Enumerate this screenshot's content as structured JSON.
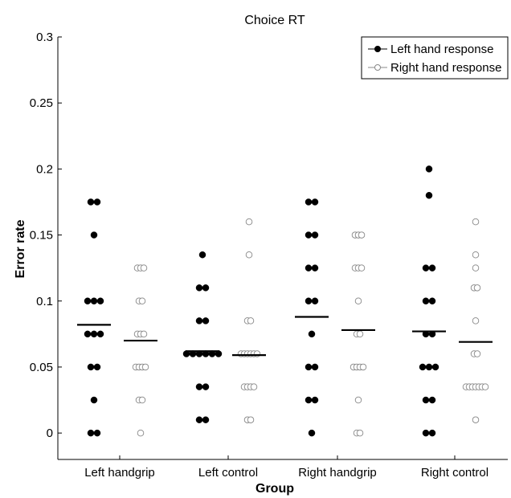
{
  "chart_data": {
    "type": "scatter",
    "title": "Choice RT",
    "xlabel": "Group",
    "ylabel": "Error rate",
    "ylim": [
      -0.02,
      0.3
    ],
    "yticks": [
      "0",
      "0.05",
      "0.1",
      "0.15",
      "0.2",
      "0.25",
      "0.3"
    ],
    "categories": [
      "Left handgrip",
      "Left control",
      "Right handgrip",
      "Right control"
    ],
    "legend_position": "top-right",
    "series": [
      {
        "name": "Left hand response",
        "marker": "filled-circle",
        "color": "#000000",
        "groups": [
          [
            0,
            0,
            0.025,
            0.05,
            0.05,
            0.075,
            0.075,
            0.075,
            0.1,
            0.1,
            0.1,
            0.15,
            0.175,
            0.175
          ],
          [
            0.01,
            0.01,
            0.035,
            0.035,
            0.06,
            0.06,
            0.06,
            0.06,
            0.06,
            0.06,
            0.085,
            0.085,
            0.11,
            0.11,
            0.135
          ],
          [
            0,
            0.025,
            0.025,
            0.05,
            0.05,
            0.075,
            0.1,
            0.1,
            0.125,
            0.125,
            0.15,
            0.15,
            0.175,
            0.175
          ],
          [
            0,
            0,
            0.025,
            0.025,
            0.05,
            0.05,
            0.05,
            0.075,
            0.075,
            0.1,
            0.1,
            0.125,
            0.125,
            0.18,
            0.2
          ]
        ],
        "means": [
          0.082,
          0.062,
          0.088,
          0.077
        ]
      },
      {
        "name": "Right hand response",
        "marker": "open-circle",
        "color": "#888888",
        "groups": [
          [
            0,
            0.025,
            0.025,
            0.05,
            0.05,
            0.05,
            0.05,
            0.075,
            0.075,
            0.075,
            0.1,
            0.1,
            0.125,
            0.125,
            0.125
          ],
          [
            0.01,
            0.01,
            0.035,
            0.035,
            0.035,
            0.035,
            0.06,
            0.06,
            0.06,
            0.06,
            0.06,
            0.06,
            0.085,
            0.085,
            0.135,
            0.16
          ],
          [
            0,
            0,
            0.025,
            0.05,
            0.05,
            0.05,
            0.05,
            0.075,
            0.075,
            0.1,
            0.125,
            0.125,
            0.125,
            0.15,
            0.15,
            0.15
          ],
          [
            0.01,
            0.035,
            0.035,
            0.035,
            0.035,
            0.035,
            0.035,
            0.035,
            0.06,
            0.06,
            0.085,
            0.11,
            0.11,
            0.125,
            0.135,
            0.16
          ]
        ],
        "means": [
          0.07,
          0.059,
          0.078,
          0.069
        ]
      }
    ]
  }
}
